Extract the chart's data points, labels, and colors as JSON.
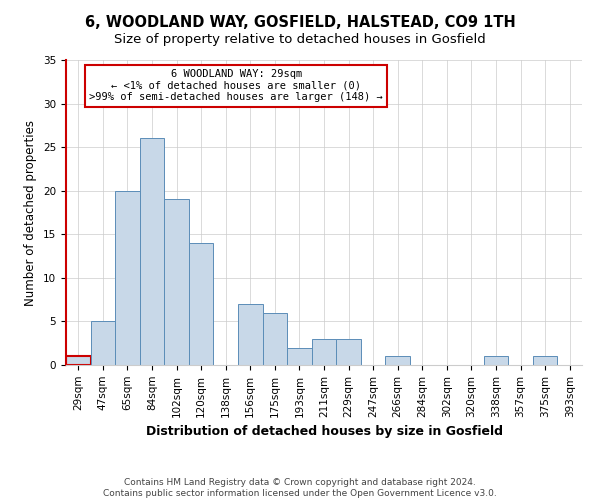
{
  "title": "6, WOODLAND WAY, GOSFIELD, HALSTEAD, CO9 1TH",
  "subtitle": "Size of property relative to detached houses in Gosfield",
  "xlabel": "Distribution of detached houses by size in Gosfield",
  "ylabel": "Number of detached properties",
  "categories": [
    "29sqm",
    "47sqm",
    "65sqm",
    "84sqm",
    "102sqm",
    "120sqm",
    "138sqm",
    "156sqm",
    "175sqm",
    "193sqm",
    "211sqm",
    "229sqm",
    "247sqm",
    "266sqm",
    "284sqm",
    "302sqm",
    "320sqm",
    "338sqm",
    "357sqm",
    "375sqm",
    "393sqm"
  ],
  "values": [
    1,
    5,
    20,
    26,
    19,
    14,
    0,
    7,
    6,
    2,
    3,
    3,
    0,
    1,
    0,
    0,
    0,
    1,
    0,
    1,
    0
  ],
  "highlight_index": 0,
  "bar_color": "#c8d8e8",
  "bar_edge_color": "#5b8db8",
  "highlight_bar_edge_color": "#cc0000",
  "annotation_box_color": "#ffffff",
  "annotation_box_edge_color": "#cc0000",
  "annotation_lines": [
    "6 WOODLAND WAY: 29sqm",
    "← <1% of detached houses are smaller (0)",
    ">99% of semi-detached houses are larger (148) →"
  ],
  "ylim": [
    0,
    35
  ],
  "yticks": [
    0,
    5,
    10,
    15,
    20,
    25,
    30,
    35
  ],
  "footer_lines": [
    "Contains HM Land Registry data © Crown copyright and database right 2024.",
    "Contains public sector information licensed under the Open Government Licence v3.0."
  ],
  "title_fontsize": 10.5,
  "subtitle_fontsize": 9.5,
  "xlabel_fontsize": 9,
  "ylabel_fontsize": 8.5,
  "tick_fontsize": 7.5,
  "annotation_fontsize": 7.5,
  "footer_fontsize": 6.5
}
